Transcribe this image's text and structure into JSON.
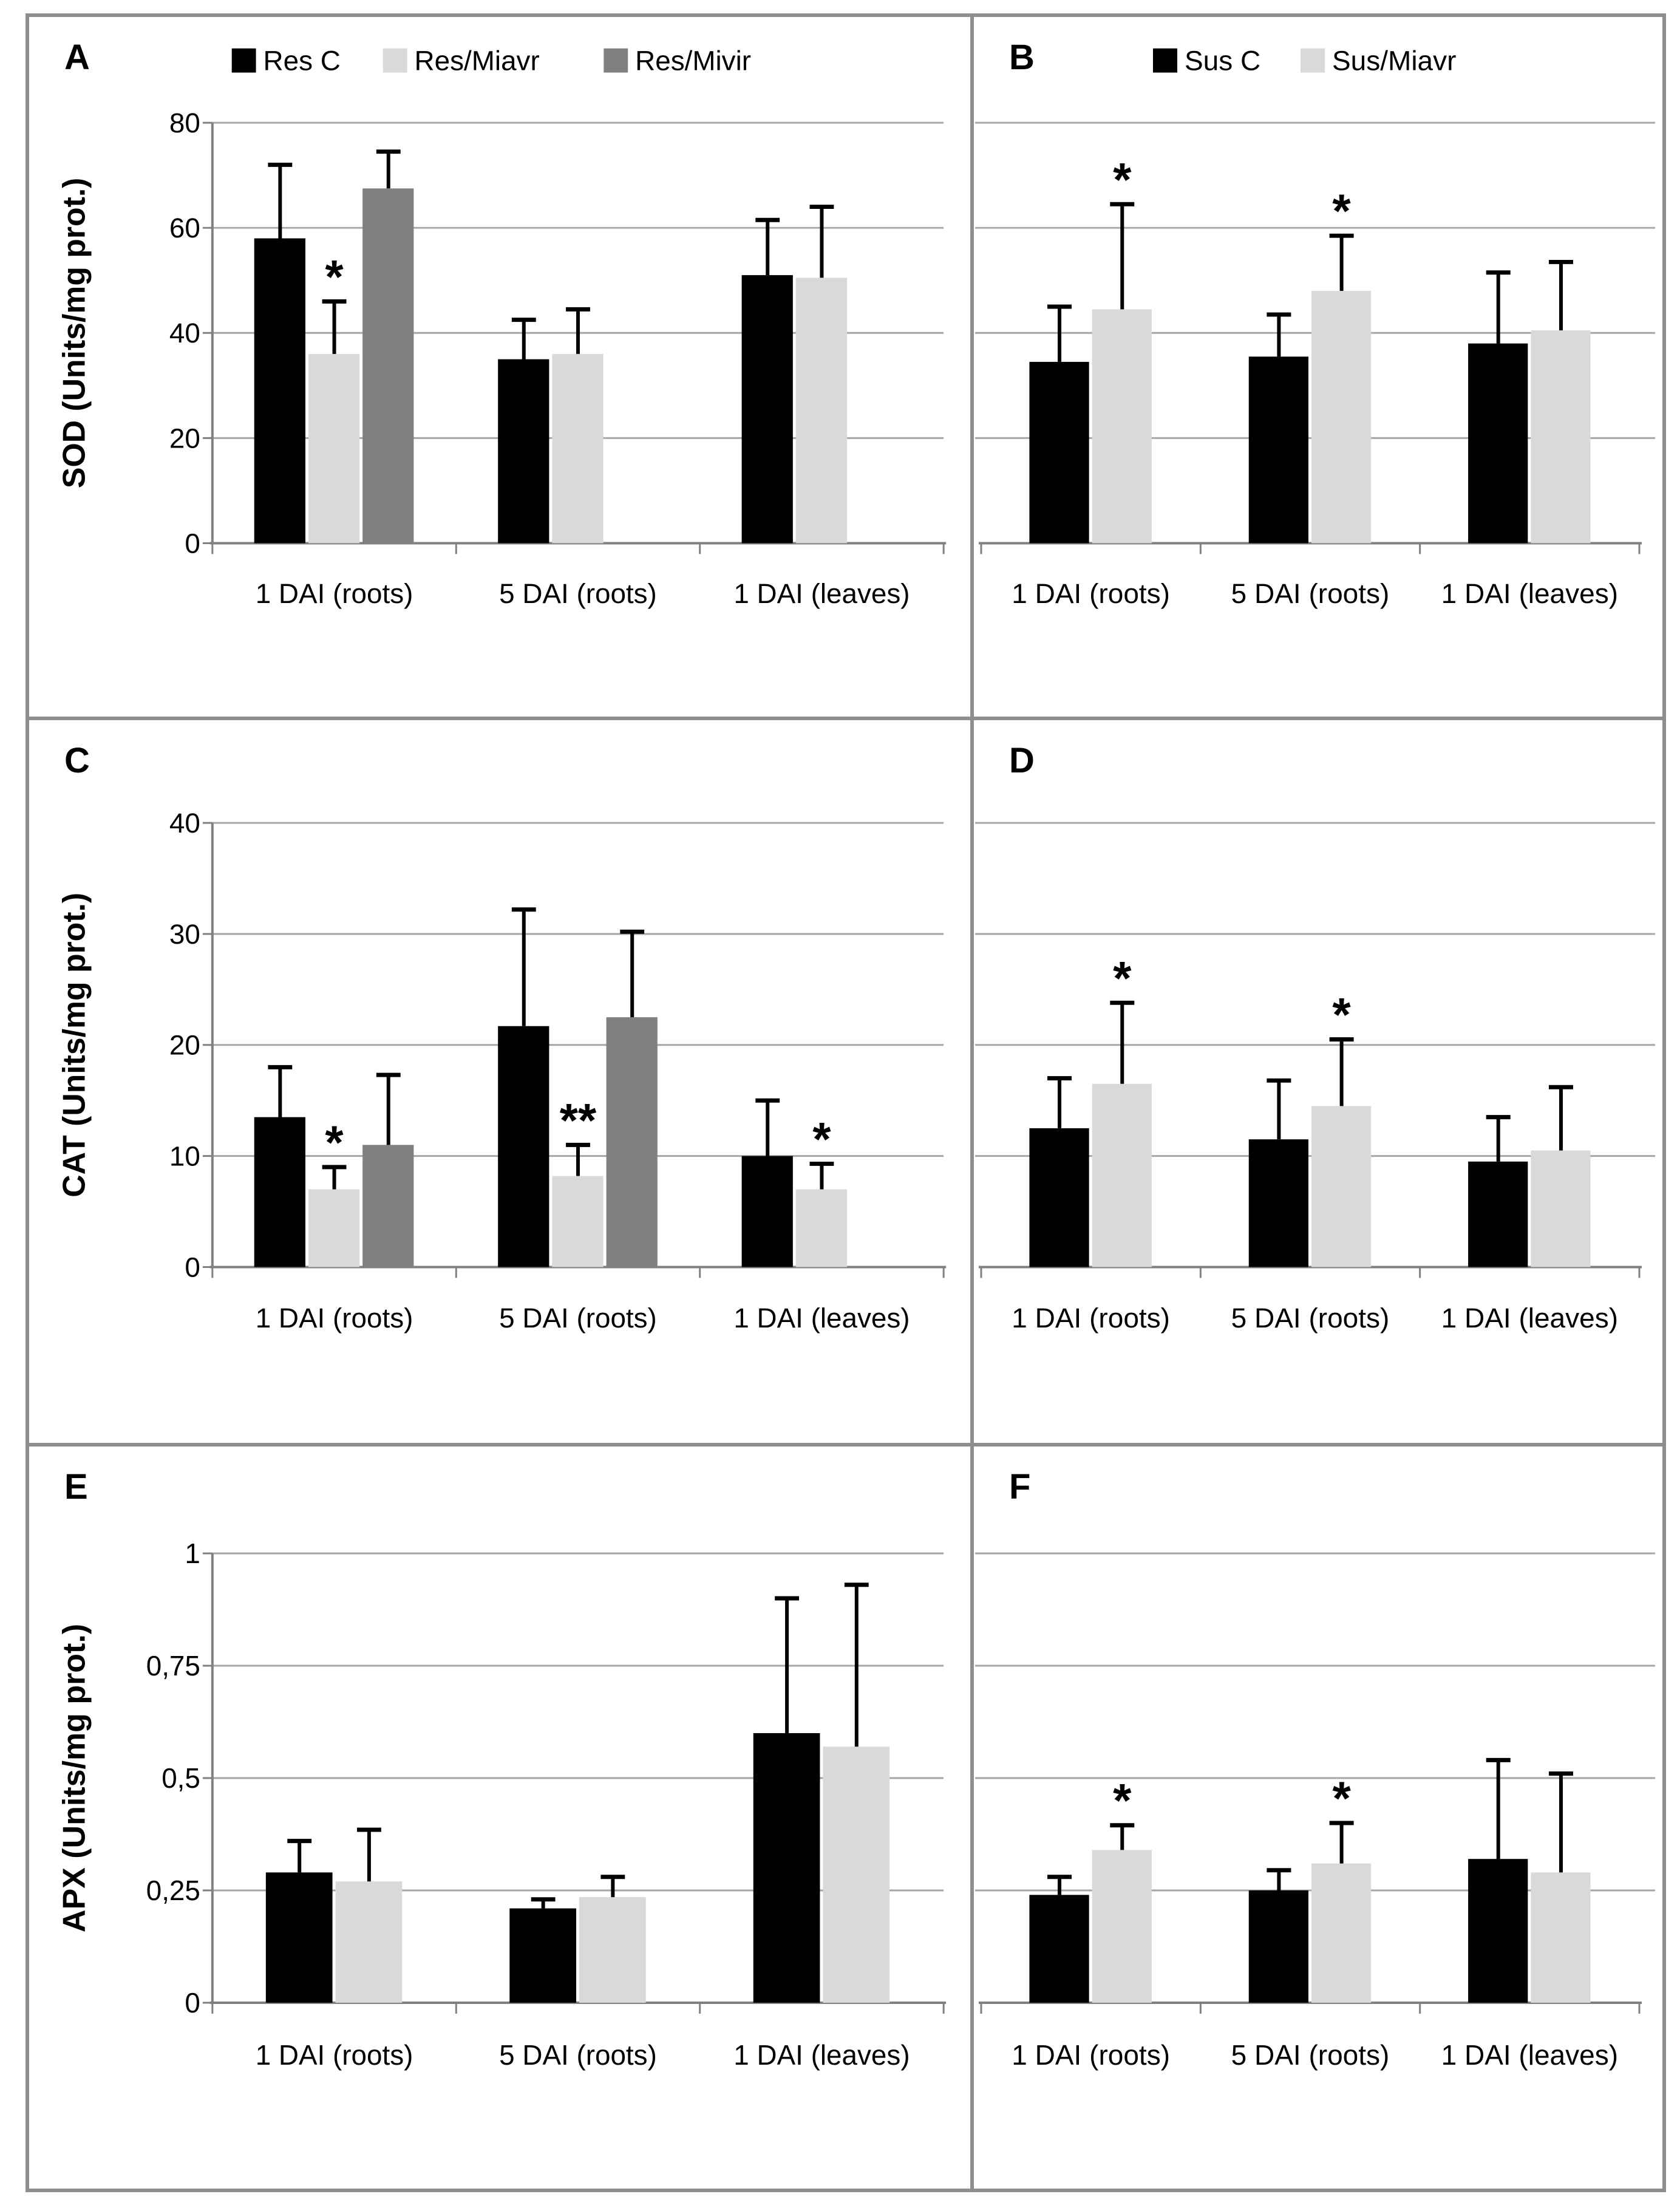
{
  "colors": {
    "series_black": "#000000",
    "series_light_gray": "#d9d9d9",
    "series_dark_gray": "#808080",
    "gridline": "#a6a6a6",
    "axis": "#808080",
    "frame_border": "#8e8e8e",
    "background": "#ffffff"
  },
  "chart_data": [
    {
      "label": "A",
      "type": "bar",
      "categories": [
        "1 DAI (roots)",
        "5 DAI (roots)",
        "1 DAI (leaves)"
      ],
      "ylabel": "SOD (Units/mg prot.)",
      "ylim": [
        0,
        80
      ],
      "ytick_values": [
        0,
        20,
        40,
        60,
        80
      ],
      "ytick_labels": [
        "0",
        "20",
        "40",
        "60",
        "80"
      ],
      "grid": true,
      "legend_position": "top",
      "series": [
        {
          "name": "Res C",
          "color": "#000000",
          "values": [
            58,
            35,
            51
          ],
          "errors_plus": [
            14,
            7.5,
            10.5
          ],
          "significance": [
            null,
            null,
            null
          ]
        },
        {
          "name": "Res/Miavr",
          "color": "#d9d9d9",
          "values": [
            36,
            36,
            50.5
          ],
          "errors_plus": [
            10,
            8.5,
            13.5
          ],
          "significance": [
            "*",
            null,
            null
          ]
        },
        {
          "name": "Res/Mivir",
          "color": "#808080",
          "values": [
            67.5,
            null,
            null
          ],
          "errors_plus": [
            7,
            null,
            null
          ],
          "significance": [
            null,
            null,
            null
          ]
        }
      ]
    },
    {
      "label": "B",
      "type": "bar",
      "categories": [
        "1 DAI (roots)",
        "5 DAI (roots)",
        "1 DAI (leaves)"
      ],
      "ylabel": null,
      "ylim": [
        0,
        80
      ],
      "ytick_values": [
        0,
        20,
        40,
        60,
        80
      ],
      "ytick_labels": null,
      "grid": true,
      "legend_position": "top",
      "series": [
        {
          "name": "Sus C",
          "color": "#000000",
          "values": [
            34.5,
            35.5,
            38
          ],
          "errors_plus": [
            10.5,
            8,
            13.5
          ],
          "significance": [
            null,
            null,
            null
          ]
        },
        {
          "name": "Sus/Miavr",
          "color": "#d9d9d9",
          "values": [
            44.5,
            48,
            40.5
          ],
          "errors_plus": [
            20,
            10.5,
            13
          ],
          "significance": [
            "*",
            "*",
            null
          ]
        }
      ]
    },
    {
      "label": "C",
      "type": "bar",
      "categories": [
        "1 DAI (roots)",
        "5 DAI (roots)",
        "1 DAI (leaves)"
      ],
      "ylabel": "CAT (Units/mg prot.)",
      "ylim": [
        0,
        40
      ],
      "ytick_values": [
        0,
        10,
        20,
        30,
        40
      ],
      "ytick_labels": [
        "0",
        "10",
        "20",
        "30",
        "40"
      ],
      "grid": true,
      "legend_position": null,
      "series": [
        {
          "name": "Res C",
          "color": "#000000",
          "values": [
            13.5,
            21.7,
            10
          ],
          "errors_plus": [
            4.5,
            10.5,
            5
          ],
          "significance": [
            null,
            null,
            null
          ]
        },
        {
          "name": "Res/Miavr",
          "color": "#d9d9d9",
          "values": [
            7,
            8.2,
            7
          ],
          "errors_plus": [
            2,
            2.8,
            2.3
          ],
          "significance": [
            "*",
            "**",
            "*"
          ]
        },
        {
          "name": "Res/Mivir",
          "color": "#808080",
          "values": [
            11,
            22.5,
            null
          ],
          "errors_plus": [
            6.3,
            7.7,
            null
          ],
          "significance": [
            null,
            null,
            null
          ]
        }
      ]
    },
    {
      "label": "D",
      "type": "bar",
      "categories": [
        "1 DAI (roots)",
        "5 DAI (roots)",
        "1 DAI (leaves)"
      ],
      "ylabel": null,
      "ylim": [
        0,
        40
      ],
      "ytick_values": [
        0,
        10,
        20,
        30,
        40
      ],
      "ytick_labels": null,
      "grid": true,
      "legend_position": null,
      "series": [
        {
          "name": "Sus C",
          "color": "#000000",
          "values": [
            12.5,
            11.5,
            9.5
          ],
          "errors_plus": [
            4.5,
            5.3,
            4
          ],
          "significance": [
            null,
            null,
            null
          ]
        },
        {
          "name": "Sus/Miavr",
          "color": "#d9d9d9",
          "values": [
            16.5,
            14.5,
            10.5
          ],
          "errors_plus": [
            7.3,
            6,
            5.7
          ],
          "significance": [
            "*",
            "*",
            null
          ]
        }
      ]
    },
    {
      "label": "E",
      "type": "bar",
      "categories": [
        "1 DAI (roots)",
        "5 DAI (roots)",
        "1 DAI (leaves)"
      ],
      "ylabel": "APX (Units/mg prot.)",
      "ylim": [
        0,
        1
      ],
      "ytick_values": [
        0,
        0.25,
        0.5,
        0.75,
        1
      ],
      "ytick_labels": [
        "0",
        "0,25",
        "0,5",
        "0,75",
        "1"
      ],
      "grid": true,
      "legend_position": null,
      "series": [
        {
          "name": "Res C",
          "color": "#000000",
          "values": [
            0.29,
            0.21,
            0.6
          ],
          "errors_plus": [
            0.07,
            0.02,
            0.3
          ],
          "significance": [
            null,
            null,
            null
          ]
        },
        {
          "name": "Res/Miavr",
          "color": "#d9d9d9",
          "values": [
            0.27,
            0.235,
            0.57
          ],
          "errors_plus": [
            0.115,
            0.045,
            0.36
          ],
          "significance": [
            null,
            null,
            null
          ]
        }
      ]
    },
    {
      "label": "F",
      "type": "bar",
      "categories": [
        "1 DAI (roots)",
        "5 DAI (roots)",
        "1 DAI (leaves)"
      ],
      "ylabel": null,
      "ylim": [
        0,
        1
      ],
      "ytick_values": [
        0,
        0.25,
        0.5,
        0.75,
        1
      ],
      "ytick_labels": null,
      "grid": true,
      "legend_position": null,
      "series": [
        {
          "name": "Sus C",
          "color": "#000000",
          "values": [
            0.24,
            0.25,
            0.32
          ],
          "errors_plus": [
            0.04,
            0.045,
            0.22
          ],
          "significance": [
            null,
            null,
            null
          ]
        },
        {
          "name": "Sus/Miavr",
          "color": "#d9d9d9",
          "values": [
            0.34,
            0.31,
            0.29
          ],
          "errors_plus": [
            0.055,
            0.09,
            0.22
          ],
          "significance": [
            "*",
            "*",
            null
          ]
        }
      ]
    }
  ]
}
